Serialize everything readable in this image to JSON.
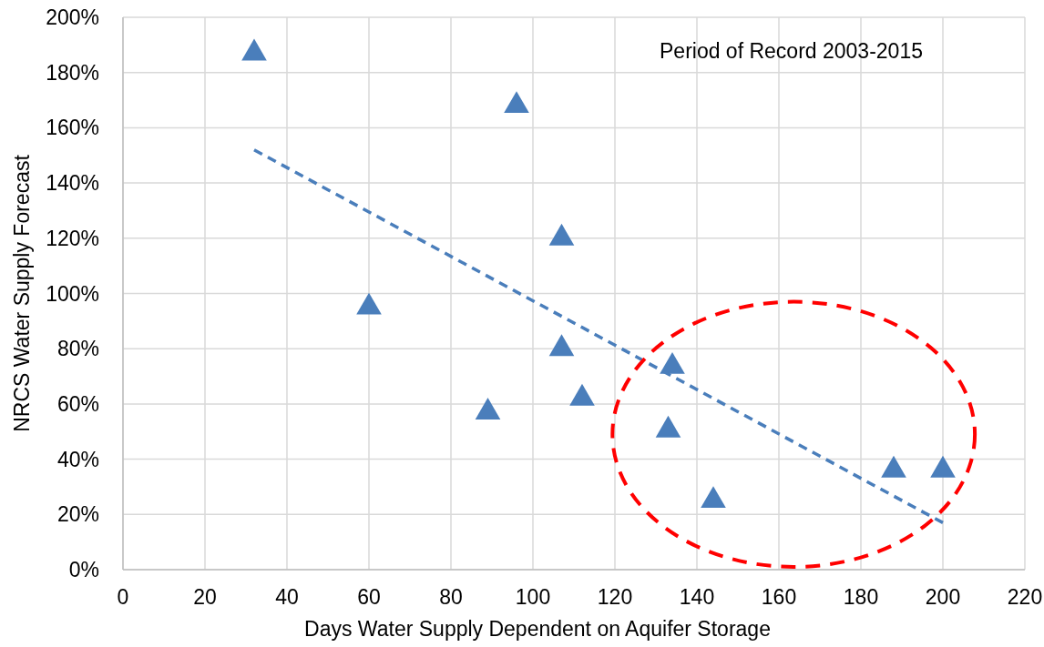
{
  "chart_data": {
    "type": "scatter",
    "xlabel": "Days Water Supply Dependent on Aquifer Storage",
    "ylabel": "NRCS Water Supply Forecast",
    "annotations": [
      "Period of Record 2003-2015"
    ],
    "series": [
      {
        "color": "#4a7ebb",
        "marker": "triangle",
        "x": [
          32,
          96,
          107,
          60,
          107,
          112,
          89,
          134,
          133,
          144,
          188,
          200
        ],
        "values": [
          188,
          169,
          121,
          96,
          81,
          63,
          58,
          74.5,
          51.5,
          26,
          37,
          37
        ]
      },
      {
        "type": "line",
        "color": "#4a7ebb",
        "marker": "none",
        "line_style": "dashed",
        "x": [
          32,
          200
        ],
        "values": [
          152,
          17
        ]
      }
    ],
    "xlim": [
      0,
      220
    ],
    "xticks": [
      0,
      20,
      40,
      60,
      80,
      100,
      120,
      140,
      160,
      180,
      200,
      220
    ],
    "ylim": [
      0,
      200
    ],
    "yticks": [
      {
        "value": 0,
        "label": "0%"
      },
      {
        "value": 20,
        "label": "20%"
      },
      {
        "value": 40,
        "label": "40%"
      },
      {
        "value": 60,
        "label": "60%"
      },
      {
        "value": 80,
        "label": "80%"
      },
      {
        "value": 100,
        "label": "100%"
      },
      {
        "value": 120,
        "label": "120%"
      },
      {
        "value": 140,
        "label": "140%"
      },
      {
        "value": 160,
        "label": "160%"
      },
      {
        "value": 180,
        "label": "180%"
      },
      {
        "value": 200,
        "label": "200%"
      }
    ],
    "grid": true
  }
}
